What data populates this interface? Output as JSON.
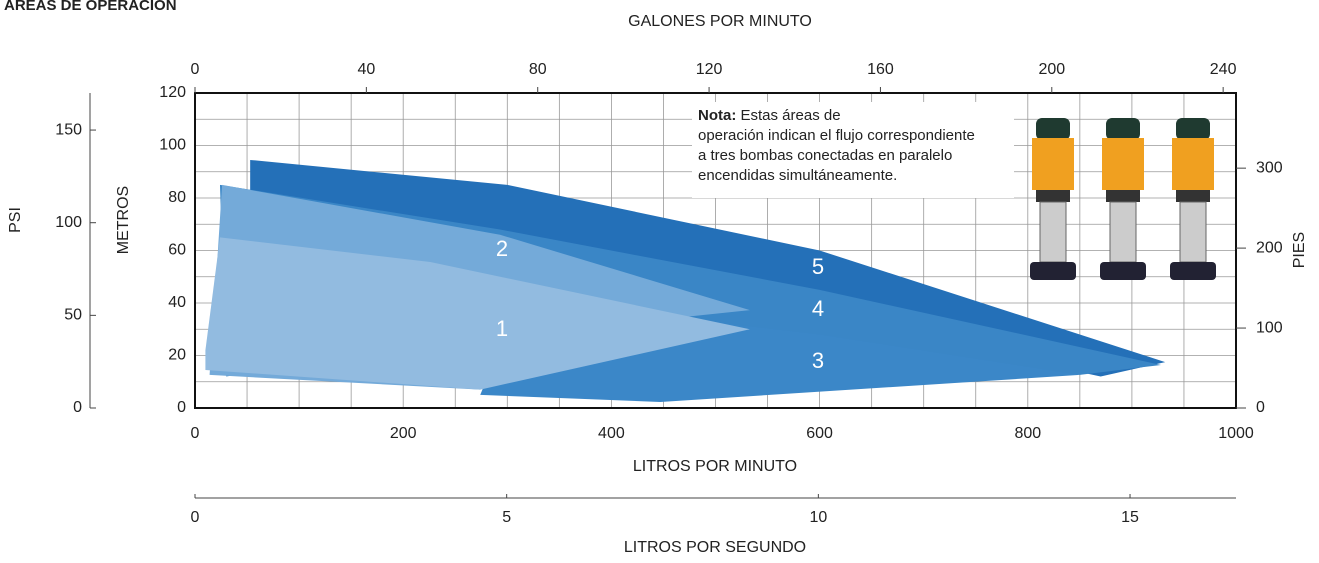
{
  "chart_data": {
    "type": "area",
    "title": "ÁREAS DE OPERACIÓN",
    "xlabel": "LITROS POR MINUTO",
    "xlim": [
      0,
      1000
    ],
    "xticks": [
      0,
      200,
      400,
      600,
      800,
      1000
    ],
    "ylabel": "METROS",
    "ylim": [
      0,
      120
    ],
    "yticks": [
      0,
      20,
      40,
      60,
      80,
      100,
      120
    ],
    "xgrid": [
      50,
      100,
      150,
      250,
      300,
      350,
      450,
      500,
      550,
      650,
      700,
      750,
      850,
      900,
      950
    ],
    "ygrid": [
      10,
      30,
      50,
      70,
      90,
      110
    ],
    "x2label": "GALONES POR MINUTO",
    "x2lim": [
      0,
      243
    ],
    "x2ticks": [
      0,
      40,
      80,
      120,
      160,
      200,
      240
    ],
    "y2label": "PIES",
    "y2lim": [
      0,
      394
    ],
    "y2ticks": [
      0,
      100,
      200,
      300
    ],
    "y3label": "PSI",
    "y3lim": [
      0,
      170
    ],
    "y3ticks": [
      0,
      50,
      100,
      150
    ],
    "x3label": "LITROS POR SEGUNDO",
    "x3lim": [
      0,
      16.7
    ],
    "x3ticks": [
      0,
      5,
      10,
      15
    ],
    "note": {
      "label": "Nota:",
      "lines": [
        "Estas áreas de",
        "operación indican el flujo correspondiente",
        "a tres bombas conectadas en paralelo",
        "encendidas simultáneamente."
      ]
    },
    "series": [
      {
        "name": "1",
        "color": "#92bbe0",
        "x": [
          24,
          226,
          533,
          274,
          10,
          10
        ],
        "y": [
          65,
          55.6,
          30,
          7,
          14.5,
          22
        ]
      },
      {
        "name": "2",
        "color": "#74aad9",
        "x": [
          26,
          293,
          533,
          351,
          274,
          14,
          19
        ],
        "y": [
          85,
          66,
          37.3,
          29.7,
          7,
          12.6,
          41
        ]
      },
      {
        "name": "3",
        "color": "#3b87c8",
        "x": [
          274,
          447,
          850,
          600,
          450,
          300
        ],
        "y": [
          5,
          2.3,
          12.6,
          28,
          35,
          30
        ]
      },
      {
        "name": "4",
        "color": "#3a86c6",
        "x": [
          24,
          293,
          600,
          928,
          850,
          600,
          300,
          30
        ],
        "y": [
          85,
          68,
          45,
          16.4,
          12.6,
          22,
          30,
          12
        ]
      },
      {
        "name": "5",
        "color": "#2470b8",
        "x": [
          53,
          300,
          600,
          932,
          870,
          600,
          300,
          53
        ],
        "y": [
          94.5,
          85,
          60,
          17.5,
          12,
          35,
          60,
          60
        ]
      }
    ]
  }
}
